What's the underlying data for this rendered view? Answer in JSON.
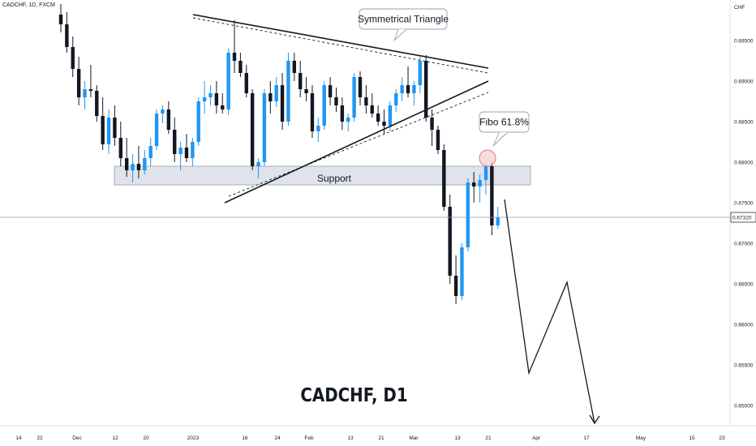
{
  "header": {
    "symbol_text": "CADCHF, 1D, FXCM"
  },
  "watermark": "CADCHF, D1",
  "colors": {
    "up": "#2196f3",
    "down": "#131722",
    "zone": "#e0e3eb",
    "circle_fill": "#f7cdd1",
    "circle_stroke": "#e57373",
    "line": "#131722"
  },
  "chart_data": {
    "type": "candlestick",
    "symbol": "CADCHF",
    "timeframe": "1D",
    "source": "FXCM",
    "ylim": [
      0.6475,
      0.6985
    ],
    "y_axis": {
      "unit": "CHF",
      "ticks": [
        "0.69500",
        "0.69000",
        "0.68500",
        "0.68000",
        "0.67500",
        "0.67000",
        "0.66500",
        "0.66000",
        "0.65500",
        "0.65000"
      ]
    },
    "x_axis": {
      "ticks": [
        "14",
        "22",
        "Dec",
        "12",
        "20",
        "2023",
        "16",
        "24",
        "Feb",
        "13",
        "21",
        "Mar",
        "13",
        "21",
        "Apr",
        "17",
        "May",
        "15",
        "23"
      ]
    },
    "last_price": {
      "value": 0.6732,
      "label": "0.67320"
    },
    "candles": [
      [
        0.6982,
        0.6995,
        0.696,
        0.697
      ],
      [
        0.697,
        0.6985,
        0.6935,
        0.6942
      ],
      [
        0.6942,
        0.6955,
        0.6905,
        0.6915
      ],
      [
        0.6915,
        0.693,
        0.687,
        0.688
      ],
      [
        0.688,
        0.69,
        0.6865,
        0.689
      ],
      [
        0.689,
        0.692,
        0.688,
        0.6888
      ],
      [
        0.6888,
        0.6895,
        0.685,
        0.6857
      ],
      [
        0.6857,
        0.688,
        0.6815,
        0.6822
      ],
      [
        0.6822,
        0.6865,
        0.681,
        0.6855
      ],
      [
        0.6855,
        0.687,
        0.682,
        0.683
      ],
      [
        0.683,
        0.685,
        0.6795,
        0.6805
      ],
      [
        0.6805,
        0.683,
        0.6782,
        0.679
      ],
      [
        0.679,
        0.681,
        0.6775,
        0.6798
      ],
      [
        0.6798,
        0.682,
        0.678,
        0.679
      ],
      [
        0.679,
        0.6815,
        0.6785,
        0.6805
      ],
      [
        0.6805,
        0.683,
        0.6795,
        0.682
      ],
      [
        0.682,
        0.6865,
        0.6815,
        0.686
      ],
      [
        0.686,
        0.687,
        0.6848,
        0.6865
      ],
      [
        0.6865,
        0.6875,
        0.6835,
        0.684
      ],
      [
        0.684,
        0.6855,
        0.68,
        0.681
      ],
      [
        0.681,
        0.6825,
        0.679,
        0.6818
      ],
      [
        0.6818,
        0.6835,
        0.68,
        0.6805
      ],
      [
        0.6805,
        0.683,
        0.6795,
        0.6825
      ],
      [
        0.6825,
        0.688,
        0.682,
        0.6875
      ],
      [
        0.6875,
        0.69,
        0.686,
        0.688
      ],
      [
        0.688,
        0.6895,
        0.687,
        0.6885
      ],
      [
        0.6885,
        0.69,
        0.686,
        0.687
      ],
      [
        0.687,
        0.6885,
        0.686,
        0.6865
      ],
      [
        0.6865,
        0.694,
        0.6858,
        0.6935
      ],
      [
        0.6935,
        0.6975,
        0.691,
        0.6925
      ],
      [
        0.6925,
        0.6935,
        0.6905,
        0.691
      ],
      [
        0.691,
        0.692,
        0.688,
        0.6885
      ],
      [
        0.6885,
        0.689,
        0.679,
        0.6795
      ],
      [
        0.6795,
        0.6805,
        0.678,
        0.68
      ],
      [
        0.68,
        0.689,
        0.6795,
        0.6885
      ],
      [
        0.6885,
        0.69,
        0.686,
        0.6875
      ],
      [
        0.6875,
        0.6905,
        0.6868,
        0.6895
      ],
      [
        0.6895,
        0.691,
        0.684,
        0.685
      ],
      [
        0.685,
        0.6935,
        0.6845,
        0.6925
      ],
      [
        0.6925,
        0.6935,
        0.69,
        0.691
      ],
      [
        0.691,
        0.6925,
        0.688,
        0.689
      ],
      [
        0.689,
        0.6905,
        0.6875,
        0.6885
      ],
      [
        0.6885,
        0.6895,
        0.683,
        0.6838
      ],
      [
        0.6838,
        0.6855,
        0.6825,
        0.6845
      ],
      [
        0.6845,
        0.69,
        0.684,
        0.6895
      ],
      [
        0.6895,
        0.6905,
        0.687,
        0.688
      ],
      [
        0.688,
        0.6892,
        0.6862,
        0.687
      ],
      [
        0.687,
        0.688,
        0.684,
        0.685
      ],
      [
        0.685,
        0.686,
        0.6838,
        0.6855
      ],
      [
        0.6855,
        0.691,
        0.685,
        0.6905
      ],
      [
        0.6905,
        0.6912,
        0.687,
        0.688
      ],
      [
        0.688,
        0.6895,
        0.686,
        0.687
      ],
      [
        0.687,
        0.6885,
        0.6855,
        0.686
      ],
      [
        0.686,
        0.687,
        0.6845,
        0.685
      ],
      [
        0.685,
        0.6865,
        0.6835,
        0.6845
      ],
      [
        0.6845,
        0.6875,
        0.6838,
        0.687
      ],
      [
        0.687,
        0.689,
        0.6862,
        0.6885
      ],
      [
        0.6885,
        0.6905,
        0.6875,
        0.6895
      ],
      [
        0.6895,
        0.6918,
        0.688,
        0.6885
      ],
      [
        0.6885,
        0.69,
        0.687,
        0.6895
      ],
      [
        0.6895,
        0.693,
        0.6885,
        0.6925
      ],
      [
        0.6925,
        0.6932,
        0.685,
        0.6855
      ],
      [
        0.6855,
        0.6865,
        0.682,
        0.684
      ],
      [
        0.684,
        0.6845,
        0.681,
        0.6815
      ],
      [
        0.6815,
        0.6822,
        0.674,
        0.6745
      ],
      [
        0.6745,
        0.676,
        0.665,
        0.666
      ],
      [
        0.666,
        0.6685,
        0.6625,
        0.6635
      ],
      [
        0.6635,
        0.67,
        0.663,
        0.6695
      ],
      [
        0.6695,
        0.678,
        0.669,
        0.6775
      ],
      [
        0.6775,
        0.6788,
        0.675,
        0.677
      ],
      [
        0.677,
        0.6785,
        0.675,
        0.6778
      ],
      [
        0.6778,
        0.68,
        0.676,
        0.6795
      ],
      [
        0.6795,
        0.68,
        0.671,
        0.6722
      ],
      [
        0.6722,
        0.6745,
        0.6718,
        0.6732
      ]
    ],
    "annotations": [
      {
        "type": "label",
        "text": "Symmetrical Triangle"
      },
      {
        "type": "label",
        "text": "Fibo 61.8%"
      },
      {
        "type": "zone",
        "text": "Support",
        "from": 0.6775,
        "to": 0.6798
      },
      {
        "type": "trendline",
        "role": "triangle-upper",
        "from": [
          0.6969
        ],
        "to": [
          0.6917
        ]
      },
      {
        "type": "trendline",
        "role": "triangle-lower",
        "from": [
          0.6743
        ],
        "to": [
          0.6888
        ]
      },
      {
        "type": "projection",
        "points": [
          0.673,
          0.6545,
          0.6655,
          0.649
        ]
      }
    ]
  }
}
